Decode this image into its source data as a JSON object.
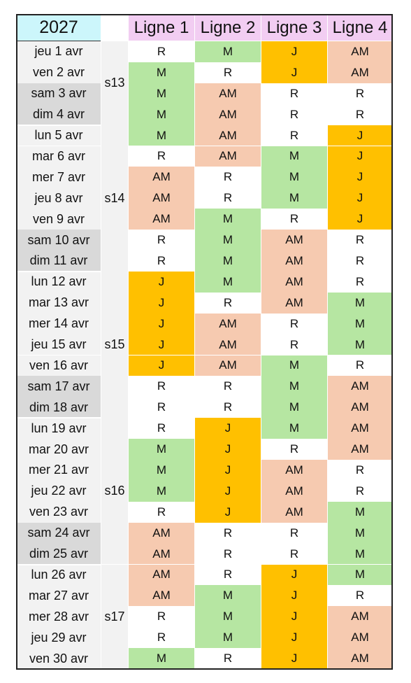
{
  "year": "2027",
  "headers": [
    "Ligne 1",
    "Ligne 2",
    "Ligne 3",
    "Ligne 4"
  ],
  "colors": {
    "M": "#b6e6a2",
    "AM": "#f6cab0",
    "J": "#ffc000",
    "R": "#ffffff"
  },
  "weeks": [
    {
      "label": "s13",
      "start": 0,
      "count": 4
    },
    {
      "label": "s14",
      "start": 4,
      "count": 7
    },
    {
      "label": "s15",
      "start": 11,
      "count": 7
    },
    {
      "label": "s16",
      "start": 18,
      "count": 7
    },
    {
      "label": "s17",
      "start": 25,
      "count": 5
    }
  ],
  "rows": [
    {
      "date": "jeu 1 avr",
      "weekend": false,
      "lines": [
        "R",
        "M",
        "J",
        "AM"
      ]
    },
    {
      "date": "ven 2 avr",
      "weekend": false,
      "lines": [
        "M",
        "R",
        "J",
        "AM"
      ]
    },
    {
      "date": "sam 3 avr",
      "weekend": true,
      "lines": [
        "M",
        "AM",
        "R",
        "R"
      ]
    },
    {
      "date": "dim 4 avr",
      "weekend": true,
      "lines": [
        "M",
        "AM",
        "R",
        "R"
      ]
    },
    {
      "date": "lun 5 avr",
      "weekend": false,
      "lines": [
        "M",
        "AM",
        "R",
        "J"
      ]
    },
    {
      "date": "mar 6 avr",
      "weekend": false,
      "lines": [
        "R",
        "AM",
        "M",
        "J"
      ]
    },
    {
      "date": "mer 7 avr",
      "weekend": false,
      "lines": [
        "AM",
        "R",
        "M",
        "J"
      ]
    },
    {
      "date": "jeu 8 avr",
      "weekend": false,
      "lines": [
        "AM",
        "R",
        "M",
        "J"
      ]
    },
    {
      "date": "ven 9 avr",
      "weekend": false,
      "lines": [
        "AM",
        "M",
        "R",
        "J"
      ]
    },
    {
      "date": "sam 10 avr",
      "weekend": true,
      "lines": [
        "R",
        "M",
        "AM",
        "R"
      ]
    },
    {
      "date": "dim 11 avr",
      "weekend": true,
      "lines": [
        "R",
        "M",
        "AM",
        "R"
      ]
    },
    {
      "date": "lun 12 avr",
      "weekend": false,
      "lines": [
        "J",
        "M",
        "AM",
        "R"
      ]
    },
    {
      "date": "mar 13 avr",
      "weekend": false,
      "lines": [
        "J",
        "R",
        "AM",
        "M"
      ]
    },
    {
      "date": "mer 14 avr",
      "weekend": false,
      "lines": [
        "J",
        "AM",
        "R",
        "M"
      ]
    },
    {
      "date": "jeu 15 avr",
      "weekend": false,
      "lines": [
        "J",
        "AM",
        "R",
        "M"
      ]
    },
    {
      "date": "ven 16 avr",
      "weekend": false,
      "lines": [
        "J",
        "AM",
        "M",
        "R"
      ]
    },
    {
      "date": "sam 17 avr",
      "weekend": true,
      "lines": [
        "R",
        "R",
        "M",
        "AM"
      ]
    },
    {
      "date": "dim 18 avr",
      "weekend": true,
      "lines": [
        "R",
        "R",
        "M",
        "AM"
      ]
    },
    {
      "date": "lun 19 avr",
      "weekend": false,
      "lines": [
        "R",
        "J",
        "M",
        "AM"
      ]
    },
    {
      "date": "mar 20 avr",
      "weekend": false,
      "lines": [
        "M",
        "J",
        "R",
        "AM"
      ]
    },
    {
      "date": "mer 21 avr",
      "weekend": false,
      "lines": [
        "M",
        "J",
        "AM",
        "R"
      ]
    },
    {
      "date": "jeu 22 avr",
      "weekend": false,
      "lines": [
        "M",
        "J",
        "AM",
        "R"
      ]
    },
    {
      "date": "ven 23 avr",
      "weekend": false,
      "lines": [
        "R",
        "J",
        "AM",
        "M"
      ]
    },
    {
      "date": "sam 24 avr",
      "weekend": true,
      "lines": [
        "AM",
        "R",
        "R",
        "M"
      ]
    },
    {
      "date": "dim 25 avr",
      "weekend": true,
      "lines": [
        "AM",
        "R",
        "R",
        "M"
      ]
    },
    {
      "date": "lun 26 avr",
      "weekend": false,
      "lines": [
        "AM",
        "R",
        "J",
        "M"
      ]
    },
    {
      "date": "mar 27 avr",
      "weekend": false,
      "lines": [
        "AM",
        "M",
        "J",
        "R"
      ]
    },
    {
      "date": "mer 28 avr",
      "weekend": false,
      "lines": [
        "R",
        "M",
        "J",
        "AM"
      ]
    },
    {
      "date": "jeu 29 avr",
      "weekend": false,
      "lines": [
        "R",
        "M",
        "J",
        "AM"
      ]
    },
    {
      "date": "ven 30 avr",
      "weekend": false,
      "lines": [
        "M",
        "R",
        "J",
        "AM"
      ]
    }
  ]
}
